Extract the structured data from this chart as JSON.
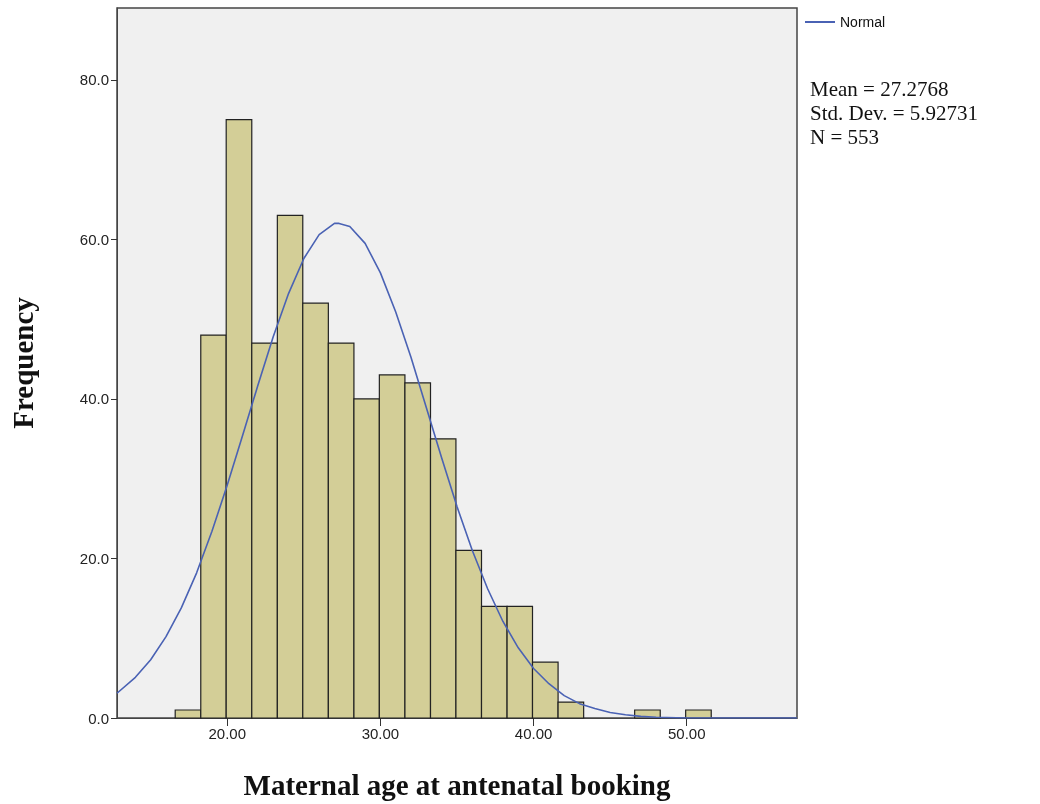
{
  "chart_data": {
    "type": "histogram",
    "xlabel": "Maternal age at antenatal booking",
    "ylabel": "Frequency",
    "xlim": [
      12.8,
      57.2
    ],
    "xticks": [
      {
        "value": 20,
        "label": "20.00"
      },
      {
        "value": 30,
        "label": "30.00"
      },
      {
        "value": 40,
        "label": "40.00"
      },
      {
        "value": 50,
        "label": "50.00"
      }
    ],
    "ylim": [
      0,
      89
    ],
    "yticks": [
      {
        "value": 0,
        "label": "0.0"
      },
      {
        "value": 20,
        "label": "20.0"
      },
      {
        "value": 40,
        "label": "40.0"
      },
      {
        "value": 60,
        "label": "60.0"
      },
      {
        "value": 80,
        "label": "80.0"
      }
    ],
    "grid": false,
    "legend": "top right",
    "annotations": [
      "Mean = 27.2768",
      "Std. Dev. = 5.92731",
      "N = 553"
    ],
    "series": [
      {
        "color": "#d3ce97",
        "bins": [
          16.6,
          18.27,
          19.93,
          21.6,
          23.27,
          24.93,
          26.6,
          28.27,
          29.93,
          31.6,
          33.27,
          34.93,
          36.6,
          38.27,
          39.93,
          41.6,
          43.27,
          44.93,
          46.6,
          48.27,
          49.93,
          51.6
        ],
        "values": [
          1,
          48,
          75,
          47,
          63,
          52,
          47,
          40,
          43,
          42,
          35,
          21,
          14,
          14,
          7,
          2,
          0,
          0,
          1,
          0,
          1
        ]
      },
      {
        "type": "line",
        "name": "Normal",
        "color": "#4a62b4",
        "x": [
          12.8,
          14,
          15,
          16,
          17,
          18,
          19,
          20,
          21,
          22,
          23,
          24,
          25,
          26,
          27,
          27.3,
          28,
          29,
          30,
          31,
          32,
          33,
          34,
          35,
          36,
          37,
          38,
          39,
          40,
          41,
          42,
          43,
          44,
          45,
          46,
          47,
          48,
          50,
          57.2
        ],
        "values": [
          3.1,
          5.1,
          7.3,
          10.2,
          13.8,
          18.2,
          23.4,
          29.2,
          35.4,
          41.7,
          47.8,
          53.2,
          57.6,
          60.6,
          62.0,
          62.0,
          61.6,
          59.5,
          55.8,
          50.9,
          45.2,
          38.9,
          32.6,
          26.5,
          21.0,
          16.2,
          12.1,
          8.8,
          6.2,
          4.3,
          2.8,
          1.8,
          1.2,
          0.7,
          0.4,
          0.2,
          0.1,
          0,
          0
        ]
      }
    ]
  }
}
